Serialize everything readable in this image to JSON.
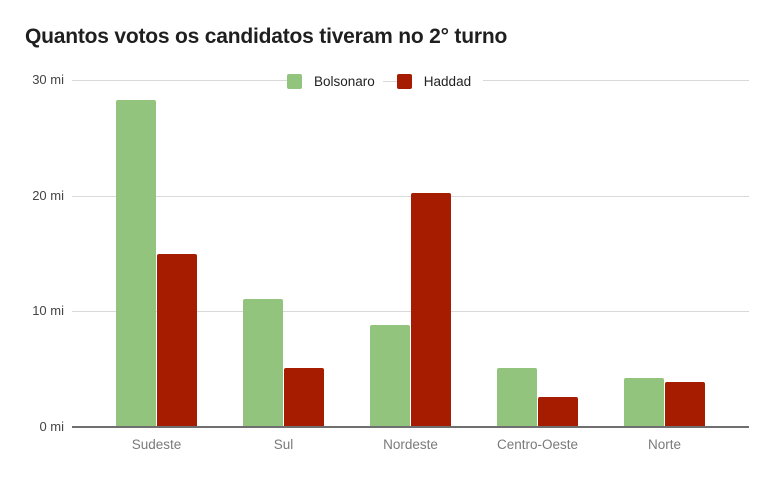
{
  "title": "Quantos votos os candidatos tiveram no 2° turno",
  "legend": [
    {
      "label": "Bolsonaro",
      "color": "#93c47d"
    },
    {
      "label": "Haddad",
      "color": "#a61c00"
    }
  ],
  "yaxis": {
    "ticks": [
      "0 mi",
      "10 mi",
      "20 mi",
      "30 mi"
    ]
  },
  "xaxis": {
    "categories": [
      "Sudeste",
      "Sul",
      "Nordeste",
      "Centro-Oeste",
      "Norte"
    ]
  },
  "chart_data": {
    "type": "bar",
    "title": "Quantos votos os candidatos tiveram no 2° turno",
    "xlabel": "",
    "ylabel": "",
    "categories": [
      "Sudeste",
      "Sul",
      "Nordeste",
      "Centro-Oeste",
      "Norte"
    ],
    "series": [
      {
        "name": "Bolsonaro",
        "color": "#93c47d",
        "values": [
          28.3,
          11.1,
          8.8,
          5.1,
          4.2
        ]
      },
      {
        "name": "Haddad",
        "color": "#a61c00",
        "values": [
          15.0,
          5.1,
          20.2,
          2.6,
          3.9
        ]
      }
    ],
    "units": "mi (milhões de votos)",
    "ylim": [
      0,
      30
    ],
    "yticks": [
      0,
      10,
      20,
      30
    ],
    "ytick_labels": [
      "0 mi",
      "10 mi",
      "20 mi",
      "30 mi"
    ],
    "grid": true,
    "legend_position": "top"
  }
}
